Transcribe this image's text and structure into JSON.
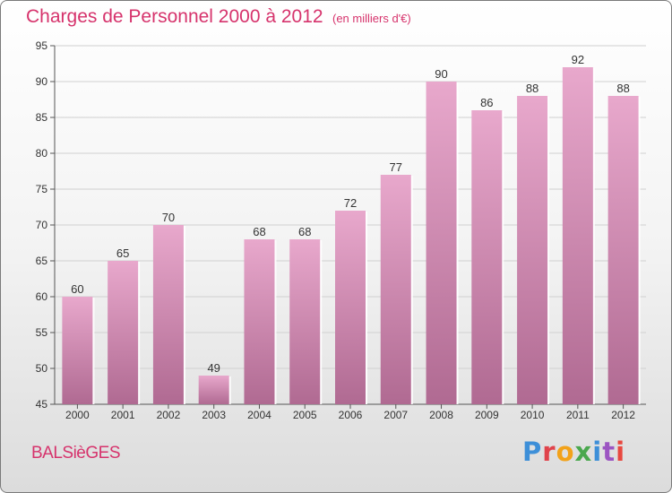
{
  "header": {
    "title": "Charges de Personnel 2000 à 2012",
    "subtitle": "(en milliers d'€)"
  },
  "footer": {
    "commune": "BALSièGES",
    "logo": [
      "P",
      "r",
      "o",
      "x",
      "i",
      "t",
      "i"
    ]
  },
  "colors": {
    "accent": "#d6336c",
    "bar_top": "#e8a8cc",
    "bar_bottom": "#b06a92",
    "grid": "#d0d0d0",
    "axis": "#555555"
  },
  "chart_data": {
    "type": "bar",
    "title": "Charges de Personnel 2000 à 2012",
    "subtitle": "(en milliers d'€)",
    "categories": [
      "2000",
      "2001",
      "2002",
      "2003",
      "2004",
      "2005",
      "2006",
      "2007",
      "2008",
      "2009",
      "2010",
      "2011",
      "2012"
    ],
    "values": [
      60,
      65,
      70,
      49,
      68,
      68,
      72,
      77,
      90,
      86,
      88,
      92,
      88
    ],
    "ylim": [
      45,
      95
    ],
    "yticks": [
      45,
      50,
      55,
      60,
      65,
      70,
      75,
      80,
      85,
      90,
      95
    ],
    "grid": true,
    "legend": "none",
    "data_labels": true
  }
}
